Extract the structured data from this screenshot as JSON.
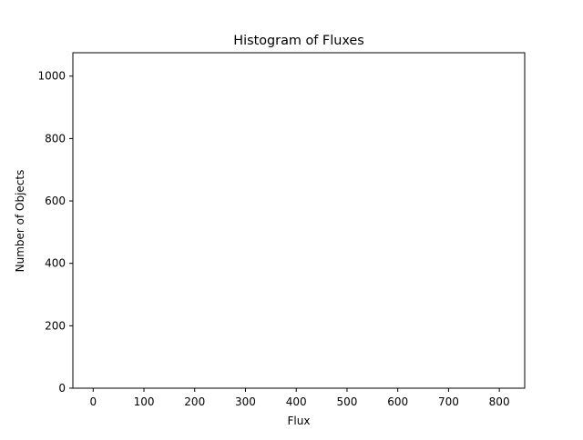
{
  "chart_data": {
    "type": "bar",
    "title": "Histogram of Fluxes",
    "xlabel": "Flux",
    "ylabel": "Number of Objects",
    "xlim": [
      -40,
      850
    ],
    "ylim": [
      0,
      1075
    ],
    "xticks": [
      0,
      100,
      200,
      300,
      400,
      500,
      600,
      700,
      800
    ],
    "yticks": [
      0,
      200,
      400,
      600,
      800,
      1000
    ],
    "grid": false,
    "legend": "none",
    "series": []
  }
}
